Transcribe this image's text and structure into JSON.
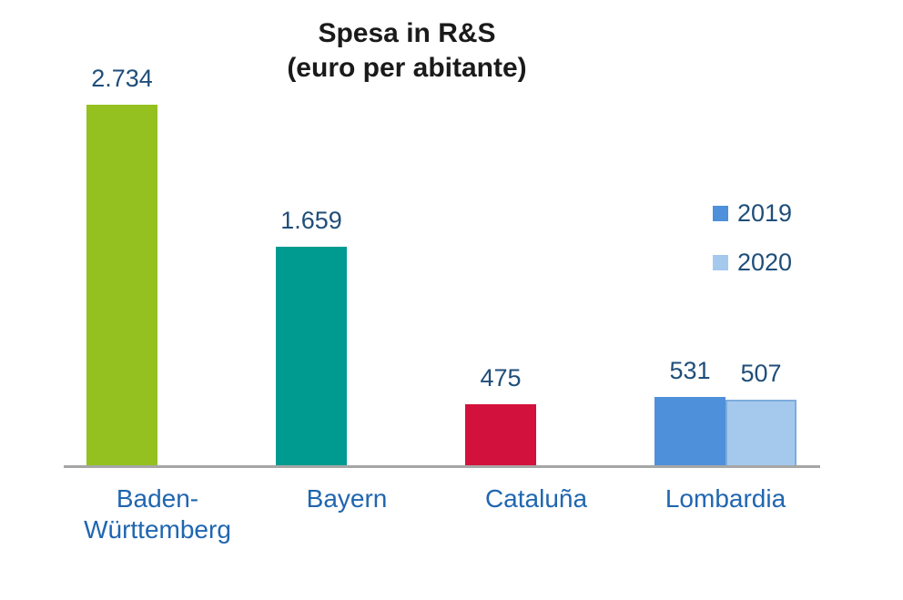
{
  "chart_data": {
    "type": "bar",
    "title": "Spesa in R&S",
    "subtitle": "(euro per abitante)",
    "categories": [
      "Baden-Württemberg",
      "Bayern",
      "Cataluña",
      "Lombardia"
    ],
    "series": [
      {
        "name": "2019",
        "values": [
          2734,
          1659,
          475,
          531
        ],
        "labels": [
          "2.734",
          "1.659",
          "475",
          "531"
        ],
        "colors": [
          "#94C11F",
          "#009B90",
          "#D2113C",
          "#4E90DA"
        ],
        "border_colors": [
          null,
          null,
          null,
          null
        ]
      },
      {
        "name": "2020",
        "values": [
          null,
          null,
          null,
          507
        ],
        "labels": [
          null,
          null,
          null,
          "507"
        ],
        "colors": [
          null,
          null,
          null,
          "#A5C9ED"
        ],
        "border_colors": [
          null,
          null,
          null,
          "#7EACDE"
        ]
      }
    ],
    "legend": {
      "position": "right",
      "entries": [
        {
          "label": "2019",
          "color": "#4E90DA"
        },
        {
          "label": "2020",
          "color": "#A5C9ED"
        }
      ]
    },
    "axis": {
      "ymin": 0,
      "grid": false,
      "baseline_color": "#A6A6A6",
      "y_axis_visible": false
    },
    "text_colors": {
      "title": "#1A1A1A",
      "value_label": "#1F4E79",
      "category_label": "#2066B0",
      "legend_label": "#1F4E79"
    }
  }
}
